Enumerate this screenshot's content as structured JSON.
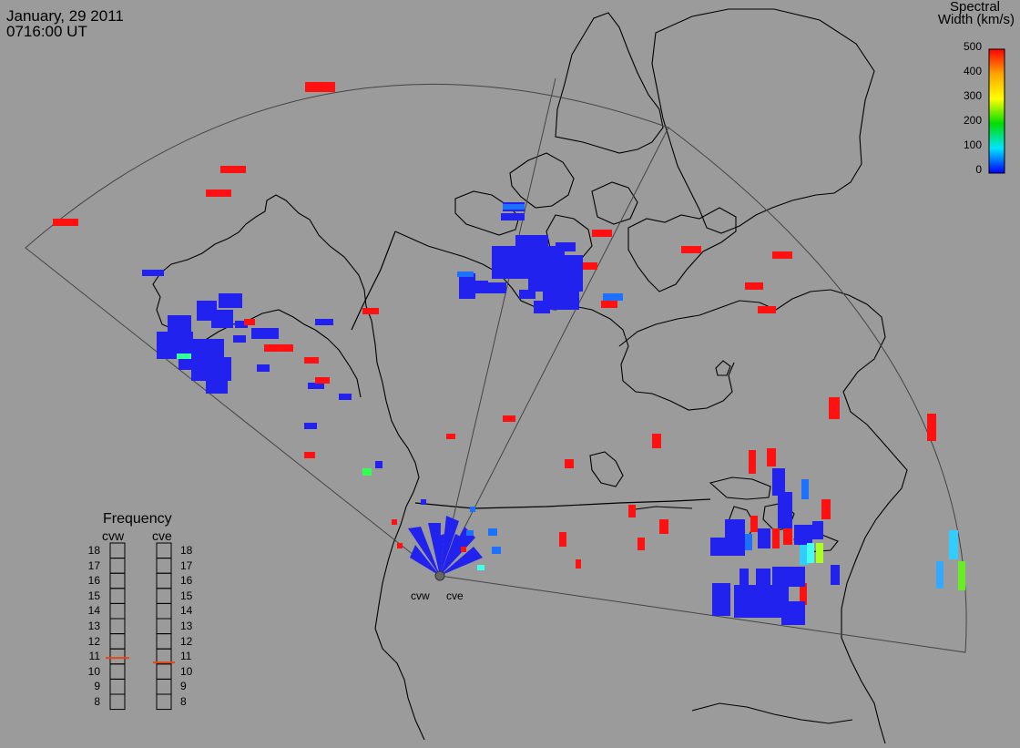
{
  "header": {
    "date": "January, 29 2011",
    "time": "0716:00 UT"
  },
  "colorbar": {
    "title_line1": "Spectral",
    "title_line2": "Width (km/s)",
    "ticks": [
      "500",
      "400",
      "300",
      "200",
      "100",
      "0"
    ],
    "colors": [
      "#ff0000",
      "#ffa500",
      "#ffff00",
      "#00dd00",
      "#00e5ff",
      "#0000ff"
    ]
  },
  "frequency": {
    "title": "Frequency",
    "columns": [
      "cvw",
      "cve"
    ],
    "scale": [
      "18",
      "17",
      "16",
      "15",
      "14",
      "13",
      "12",
      "11",
      "10",
      "9",
      "8"
    ],
    "cvw_value": 10.9,
    "cve_value": 10.6
  },
  "radars": {
    "west_label": "cvw",
    "east_label": "cve"
  }
}
